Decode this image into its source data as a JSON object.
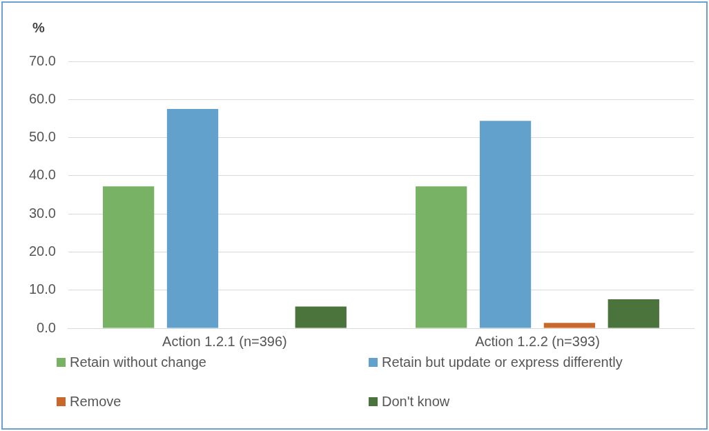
{
  "chart_data": {
    "type": "bar",
    "ylabel": "%",
    "categories": [
      "Action 1.2.1 (n=396)",
      "Action 1.2.2 (n=393)"
    ],
    "series": [
      {
        "name": "Retain without change",
        "color": "#77b265",
        "values": [
          37.2,
          37.2
        ]
      },
      {
        "name": "Retain but update or express differently",
        "color": "#62a1cc",
        "values": [
          57.5,
          54.4
        ]
      },
      {
        "name": "Remove",
        "color": "#c8692b",
        "values": [
          0,
          1.4
        ]
      },
      {
        "name": "Don't know",
        "color": "#4b743d",
        "values": [
          5.7,
          7.6
        ]
      }
    ],
    "ylim": [
      0,
      70
    ],
    "yticks": [
      {
        "value": 0,
        "label": "0.0"
      },
      {
        "value": 10,
        "label": "10.0"
      },
      {
        "value": 20,
        "label": "20.0"
      },
      {
        "value": 30,
        "label": "30.0"
      },
      {
        "value": 40,
        "label": "40.0"
      },
      {
        "value": 50,
        "label": "50.0"
      },
      {
        "value": 60,
        "label": "60.0"
      },
      {
        "value": 70,
        "label": "70.0"
      }
    ],
    "grid": "y",
    "legend": "bottom"
  }
}
